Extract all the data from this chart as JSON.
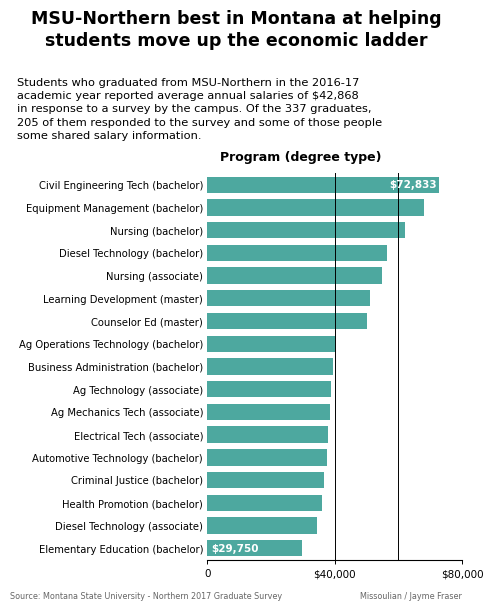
{
  "title": "MSU-Northern best in Montana at helping\nstudents move up the economic ladder",
  "subtitle": "Students who graduated from MSU-Northern in the 2016-17\nacademic year reported average annual salaries of $42,868\nin response to a survey by the campus. Of the 337 graduates,\n205 of them responded to the survey and some of those people\nsome shared salary information.",
  "xlabel_label": "Program (degree type)",
  "categories": [
    "Civil Engineering Tech (bachelor)",
    "Equipment Management (bachelor)",
    "Nursing (bachelor)",
    "Diesel Technology (bachelor)",
    "Nursing (associate)",
    "Learning Development (master)",
    "Counselor Ed (master)",
    "Ag Operations Technology (bachelor)",
    "Business Administration (bachelor)",
    "Ag Technology (associate)",
    "Ag Mechanics Tech (associate)",
    "Electrical Tech (associate)",
    "Automotive Technology (bachelor)",
    "Criminal Justice (bachelor)",
    "Health Promotion (bachelor)",
    "Diesel Technology (associate)",
    "Elementary Education (bachelor)"
  ],
  "values": [
    72833,
    68000,
    62000,
    56500,
    55000,
    51000,
    50000,
    40500,
    39500,
    38800,
    38500,
    37800,
    37500,
    36500,
    36000,
    34500,
    29750
  ],
  "bar_color": "#4da89f",
  "label_top": "$72,833",
  "label_bottom": "$29,750",
  "xmin": 0,
  "xmax": 80000,
  "xticks": [
    0,
    40000,
    80000
  ],
  "xtick_labels": [
    "0",
    "$40,000",
    "$80,000"
  ],
  "vline_x": [
    40000,
    60000,
    80000
  ],
  "footer_left": "Source: Montana State University - Northern 2017 Graduate Survey",
  "footer_right": "Missoulian / Jayme Fraser",
  "bg_color": "#ffffff",
  "title_fontsize": 12.5,
  "subtitle_fontsize": 8.2,
  "bar_label_fontsize": 7.5,
  "category_fontsize": 7.2,
  "axis_label_fontsize": 9.0,
  "xtick_fontsize": 7.5
}
